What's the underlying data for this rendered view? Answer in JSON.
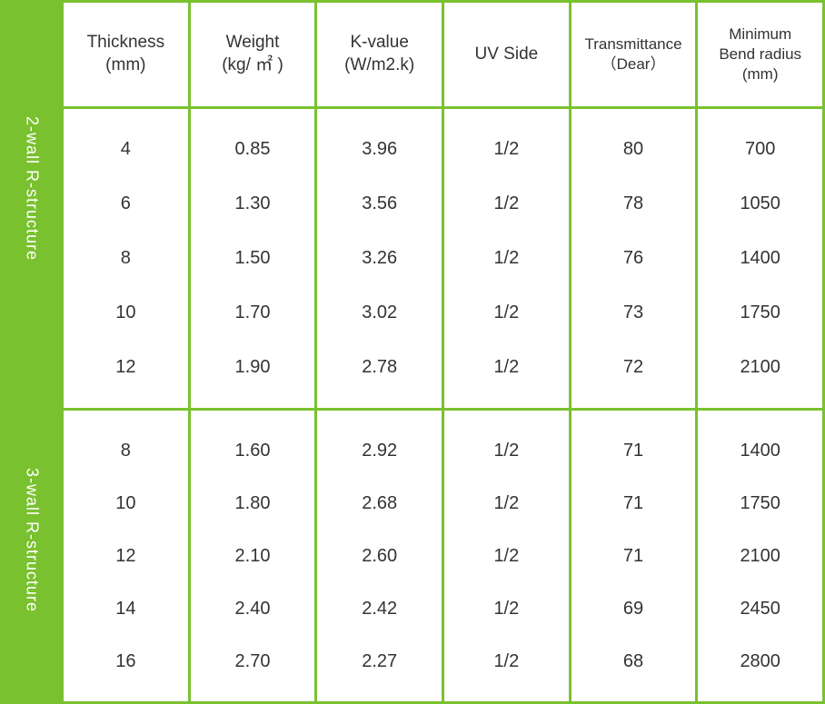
{
  "sidebar": {
    "section1_label": "2-wall R-structure",
    "section2_label": "3-wall R-structure"
  },
  "columns": [
    {
      "title": "Thickness",
      "unit": "(mm)"
    },
    {
      "title": "Weight",
      "unit": "(kg/ ㎡ )"
    },
    {
      "title": "K-value",
      "unit": "(W/m2.k)"
    },
    {
      "title": "UV Side",
      "unit": ""
    },
    {
      "title": "Transmittance",
      "unit": "（Dear）",
      "small": true
    },
    {
      "title": "Minimum",
      "unit": "Bend radius",
      "unit2": "(mm)",
      "small": true
    }
  ],
  "section1": {
    "rows": [
      {
        "thickness": "4",
        "weight": "0.85",
        "kvalue": "3.96",
        "uvside": "1/2",
        "transmittance": "80",
        "bendradius": "700"
      },
      {
        "thickness": "6",
        "weight": "1.30",
        "kvalue": "3.56",
        "uvside": "1/2",
        "transmittance": "78",
        "bendradius": "1050"
      },
      {
        "thickness": "8",
        "weight": "1.50",
        "kvalue": "3.26",
        "uvside": "1/2",
        "transmittance": "76",
        "bendradius": "1400"
      },
      {
        "thickness": "10",
        "weight": "1.70",
        "kvalue": "3.02",
        "uvside": "1/2",
        "transmittance": "73",
        "bendradius": "1750"
      },
      {
        "thickness": "12",
        "weight": "1.90",
        "kvalue": "2.78",
        "uvside": "1/2",
        "transmittance": "72",
        "bendradius": "2100"
      }
    ]
  },
  "section2": {
    "rows": [
      {
        "thickness": "8",
        "weight": "1.60",
        "kvalue": "2.92",
        "uvside": "1/2",
        "transmittance": "71",
        "bendradius": "1400"
      },
      {
        "thickness": "10",
        "weight": "1.80",
        "kvalue": "2.68",
        "uvside": "1/2",
        "transmittance": "71",
        "bendradius": "1750"
      },
      {
        "thickness": "12",
        "weight": "2.10",
        "kvalue": "2.60",
        "uvside": "1/2",
        "transmittance": "71",
        "bendradius": "2100"
      },
      {
        "thickness": "14",
        "weight": "2.40",
        "kvalue": "2.42",
        "uvside": "1/2",
        "transmittance": "69",
        "bendradius": "2450"
      },
      {
        "thickness": "16",
        "weight": "2.70",
        "kvalue": "2.27",
        "uvside": "1/2",
        "transmittance": "68",
        "bendradius": "2800"
      }
    ]
  },
  "colors": {
    "accent": "#79c12f",
    "text": "#333333",
    "background": "#ffffff",
    "sidebar_text": "#ffffff"
  }
}
